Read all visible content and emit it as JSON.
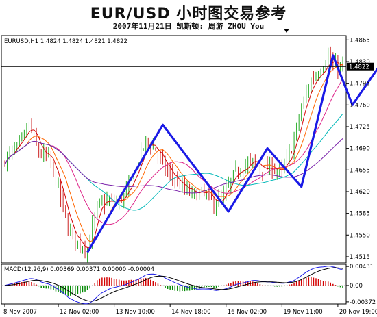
{
  "header": {
    "title": "EUR/USD 小时图交易参考",
    "subtitle": "2007年11月21日 凯斯顿: 周游 ZHOU You"
  },
  "chart_data": [
    {
      "type": "candlestick",
      "info_label": "EURUSD,H1  1.4824 1.4824 1.4821 1.4822",
      "current_price_label": "1.4822",
      "current_price": 1.4822,
      "ylim": [
        1.4505,
        1.4872
      ],
      "y_ticks": [
        "1.4865",
        "1.4830",
        "1.4795",
        "1.4760",
        "1.4725",
        "1.4690",
        "1.4655",
        "1.4620",
        "1.4585",
        "1.4550",
        "1.4515"
      ],
      "y_tick_values": [
        1.4865,
        1.483,
        1.4795,
        1.476,
        1.4725,
        1.469,
        1.4655,
        1.462,
        1.4585,
        1.455,
        1.4515
      ],
      "x_ticks": [
        "8 Nov 2007",
        "12 Nov 02:00",
        "13 Nov 10:00",
        "14 Nov 18:00",
        "16 Nov 02:00",
        "19 Nov 11:00",
        "20 Nov 19:00"
      ],
      "x_tick_index": [
        0,
        22,
        45,
        68,
        91,
        114,
        137
      ],
      "n_bars": 140,
      "price_path": [
        [
          0,
          1.4672
        ],
        [
          6,
          1.4695
        ],
        [
          10,
          1.4728
        ],
        [
          14,
          1.4682
        ],
        [
          18,
          1.4675
        ],
        [
          22,
          1.4625
        ],
        [
          26,
          1.456
        ],
        [
          30,
          1.4538
        ],
        [
          34,
          1.4528
        ],
        [
          38,
          1.4595
        ],
        [
          42,
          1.4605
        ],
        [
          46,
          1.4602
        ],
        [
          50,
          1.4618
        ],
        [
          54,
          1.466
        ],
        [
          58,
          1.4702
        ],
        [
          62,
          1.4688
        ],
        [
          66,
          1.4655
        ],
        [
          70,
          1.464
        ],
        [
          74,
          1.4622
        ],
        [
          78,
          1.4615
        ],
        [
          82,
          1.4618
        ],
        [
          86,
          1.46
        ],
        [
          90,
          1.4612
        ],
        [
          94,
          1.4645
        ],
        [
          98,
          1.4662
        ],
        [
          102,
          1.4668
        ],
        [
          106,
          1.4655
        ],
        [
          110,
          1.466
        ],
        [
          114,
          1.465
        ],
        [
          118,
          1.469
        ],
        [
          122,
          1.4755
        ],
        [
          126,
          1.48
        ],
        [
          130,
          1.482
        ],
        [
          133,
          1.484
        ],
        [
          135,
          1.4822
        ]
      ],
      "moving_averages": [
        {
          "color": "#d40000",
          "period": 5
        },
        {
          "color": "#ff6600",
          "period": 10
        },
        {
          "color": "#dd2288",
          "period": 20
        },
        {
          "color": "#00b8b8",
          "period": 34
        },
        {
          "color": "#7a22aa",
          "period": 55
        }
      ],
      "projection": {
        "color": "#1a1ae6",
        "points": [
          [
            34,
            1.4522
          ],
          [
            65,
            1.4728
          ],
          [
            92,
            1.4588
          ],
          [
            108,
            1.469
          ],
          [
            122,
            1.4628
          ],
          [
            135,
            1.484
          ],
          [
            143,
            1.476
          ],
          [
            158,
            1.4845
          ]
        ]
      }
    },
    {
      "type": "macd",
      "info_label": "MACD(12,26,9) 0.00369 0.00371 0.00000 -0.00004",
      "y_ticks": [
        "0.00431",
        "0.00",
        "-0.00372"
      ],
      "y_tick_values": [
        0.00431,
        0,
        -0.00372
      ],
      "ylim": [
        -0.0042,
        0.0048
      ],
      "colors": {
        "macd": "#1a1ae6",
        "signal": "#000000",
        "hist_pos": "#d40000",
        "hist_neg": "#008800"
      }
    }
  ],
  "colors": {
    "up_candle": "#22aa22",
    "down_candle": "#cc2222",
    "grid": "#000000"
  }
}
